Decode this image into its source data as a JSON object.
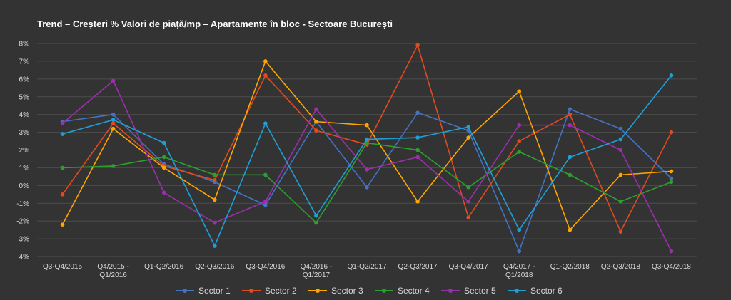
{
  "chart_data": {
    "type": "line",
    "title": "Trend – Creșteri % Valori de piață/mp – Apartamente în bloc - Sectoare București",
    "categories": [
      "Q3-Q4/2015",
      "Q4/2015 -\nQ1/2016",
      "Q1-Q2/2016",
      "Q2-Q3/2016",
      "Q3-Q4/2016",
      "Q4/2016 -\nQ1/2017",
      "Q1-Q2/2017",
      "Q2-Q3/2017",
      "Q3-Q4/2017",
      "Q4/2017 -\nQ1/2018",
      "Q1-Q2/2018",
      "Q2-Q3/2018",
      "Q3-Q4/2018"
    ],
    "yticks": [
      -4,
      -3,
      -2,
      -1,
      0,
      1,
      2,
      3,
      4,
      5,
      6,
      7,
      8
    ],
    "ytick_labels": [
      "-4%",
      "-3%",
      "-2%",
      "-1%",
      "0%",
      "1%",
      "2%",
      "3%",
      "4%",
      "5%",
      "6%",
      "7%",
      "8%"
    ],
    "ylim": [
      -4,
      8
    ],
    "grid": true,
    "legend_position": "bottom",
    "series": [
      {
        "name": "Sector 1",
        "color": "#4472c4",
        "values": [
          3.6,
          4.0,
          1.2,
          0.2,
          -1.1,
          3.6,
          -0.1,
          4.1,
          3.1,
          -3.7,
          4.3,
          3.2,
          0.4
        ]
      },
      {
        "name": "Sector 2",
        "color": "#e14b1f",
        "values": [
          -0.5,
          3.5,
          1.1,
          0.3,
          6.2,
          3.1,
          2.3,
          7.9,
          -1.8,
          2.5,
          4.0,
          -2.6,
          3.0
        ]
      },
      {
        "name": "Sector 3",
        "color": "#ffa500",
        "values": [
          -2.2,
          3.2,
          1.0,
          -0.8,
          7.0,
          3.6,
          3.4,
          -0.9,
          2.7,
          5.3,
          -2.5,
          0.6,
          0.8
        ]
      },
      {
        "name": "Sector 4",
        "color": "#2ca02c",
        "values": [
          1.0,
          1.1,
          1.6,
          0.6,
          0.6,
          -2.1,
          2.4,
          2.0,
          -0.1,
          1.9,
          0.6,
          -0.9,
          0.2
        ]
      },
      {
        "name": "Sector 5",
        "color": "#9b2fae",
        "values": [
          3.5,
          5.9,
          -0.4,
          -2.1,
          -0.9,
          4.3,
          0.9,
          1.6,
          -0.9,
          3.4,
          3.4,
          2.0,
          -3.7
        ]
      },
      {
        "name": "Sector 6",
        "color": "#1f9fd6",
        "values": [
          2.9,
          3.7,
          2.4,
          -3.4,
          3.5,
          -1.7,
          2.6,
          2.7,
          3.3,
          -2.5,
          1.6,
          2.6,
          6.2
        ]
      }
    ]
  }
}
